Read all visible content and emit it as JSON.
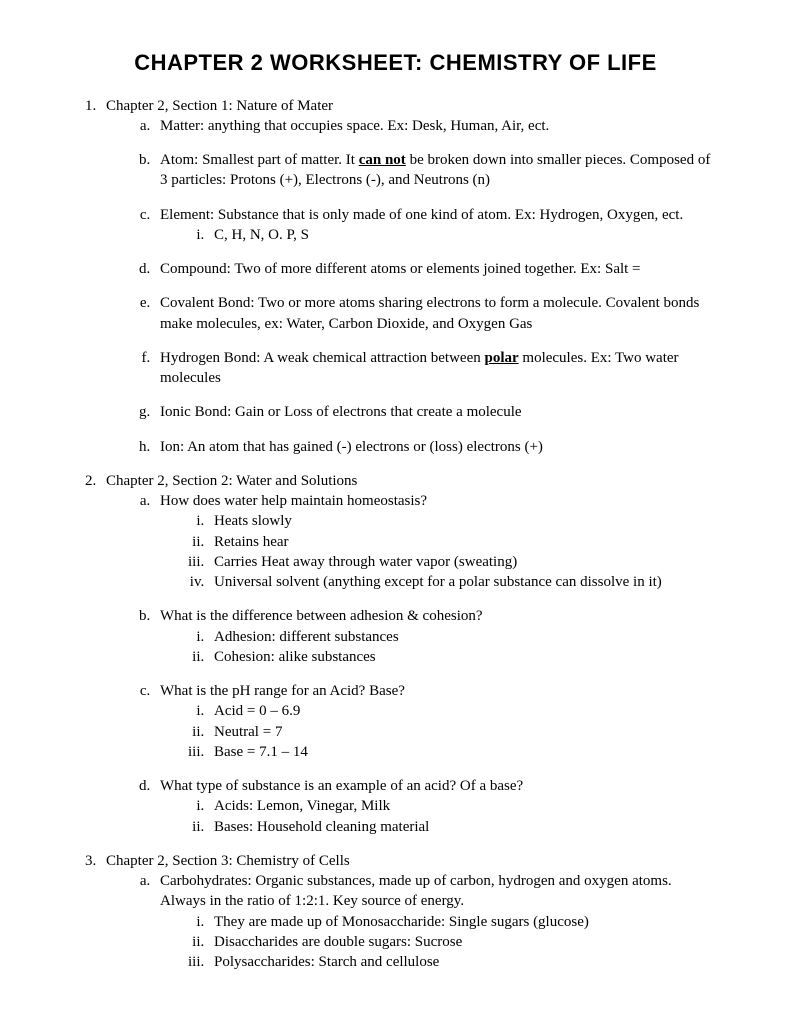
{
  "title": "Chapter 2 Worksheet: Chemistry of Life",
  "sections": [
    {
      "heading": "Chapter 2, Section 1: Nature of Mater",
      "items": [
        {
          "prefix": "Matter: anything that occupies space.  Ex: Desk, Human, Air, ect."
        },
        {
          "prefix": "Atom: Smallest part of matter.  It ",
          "emph": "can not",
          "suffix": " be broken down into smaller pieces.  Composed of 3 particles: Protons (+), Electrons (-), and Neutrons (n)"
        },
        {
          "prefix": "Element: Substance that is only made of one kind of atom.  Ex: Hydrogen, Oxygen, ect.",
          "subs": [
            "C, H, N, O. P, S"
          ]
        },
        {
          "prefix": "Compound: Two of more different atoms or elements joined together.  Ex: Salt ="
        },
        {
          "prefix": "Covalent Bond: Two or more atoms sharing electrons to form a molecule.  Covalent bonds make molecules, ex: Water, Carbon Dioxide, and Oxygen Gas"
        },
        {
          "prefix": "Hydrogen Bond: A weak chemical attraction between ",
          "emph": "polar",
          "suffix": " molecules.  Ex: Two water molecules"
        },
        {
          "prefix": "Ionic Bond: Gain or Loss of electrons that create a molecule"
        },
        {
          "prefix": "Ion: An atom that has gained (-) electrons or (loss) electrons (+)"
        }
      ]
    },
    {
      "heading": "Chapter 2, Section 2: Water and Solutions",
      "items": [
        {
          "prefix": "How does water help maintain homeostasis?",
          "subs": [
            "Heats slowly",
            "Retains hear",
            "Carries Heat away through water vapor (sweating)",
            "Universal solvent (anything except for a polar substance can dissolve in it)"
          ]
        },
        {
          "prefix": "What is the difference between adhesion & cohesion?",
          "subs": [
            "Adhesion: different substances",
            "Cohesion: alike substances"
          ]
        },
        {
          "prefix": "What is the pH range for an Acid?  Base?",
          "subs": [
            "Acid = 0 – 6.9",
            "Neutral = 7",
            "Base = 7.1 – 14"
          ]
        },
        {
          "prefix": "What type of substance is an example of an acid?  Of a base?",
          "subs": [
            "Acids: Lemon, Vinegar, Milk",
            "Bases: Household cleaning material"
          ]
        }
      ]
    },
    {
      "heading": "Chapter 2, Section 3: Chemistry of Cells",
      "items": [
        {
          "prefix": "Carbohydrates: Organic substances, made up of carbon, hydrogen and oxygen atoms.  Always in the ratio of 1:2:1.  Key source of energy.",
          "subs": [
            "They are made up of Monosaccharide: Single sugars (glucose)",
            "Disaccharides are double sugars: Sucrose",
            "Polysaccharides: Starch and cellulose"
          ]
        }
      ]
    }
  ]
}
